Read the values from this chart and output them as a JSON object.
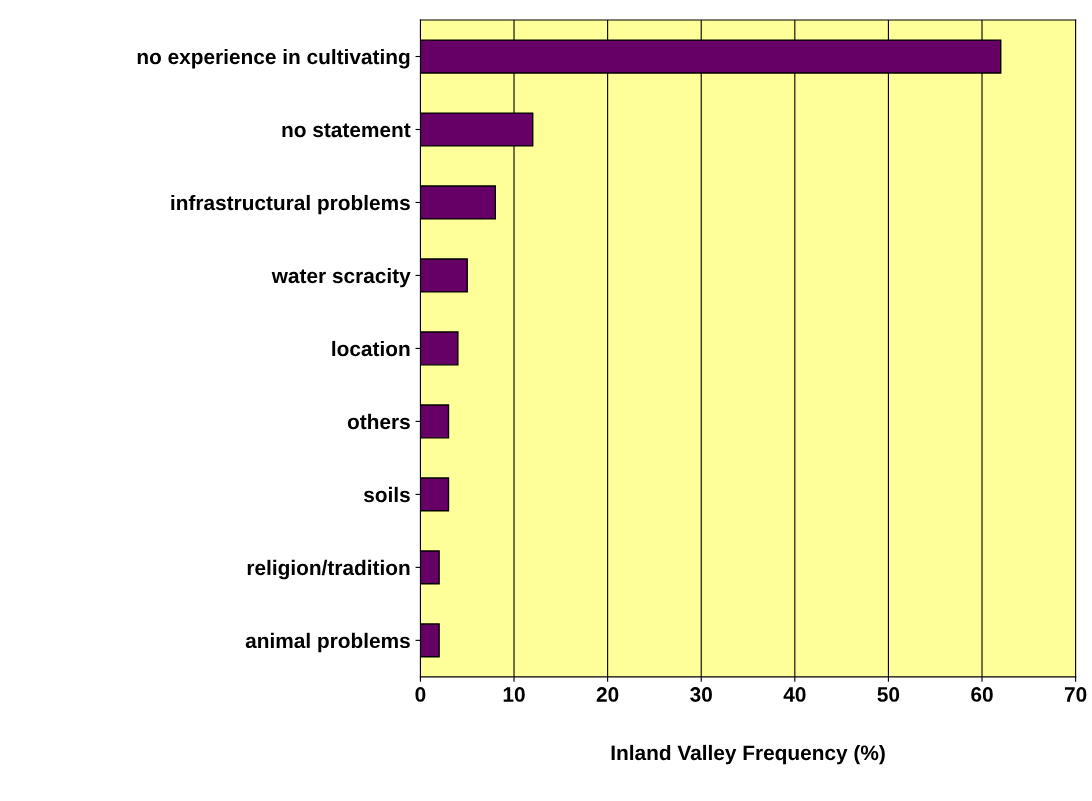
{
  "chart_data": {
    "type": "bar",
    "orientation": "horizontal",
    "xlabel": "Inland Valley Frequency (%)",
    "categories": [
      "no experience in cultivating",
      "no statement",
      "infrastructural problems",
      "water scracity",
      "location",
      "others",
      "soils",
      "religion/tradition",
      "animal problems"
    ],
    "values": [
      62,
      12,
      8,
      5,
      4,
      3,
      3,
      2,
      2
    ],
    "color": "#660066",
    "xlim": [
      0,
      70
    ],
    "xticks": [
      0,
      10,
      20,
      30,
      40,
      50,
      60,
      70
    ],
    "grid": "x"
  }
}
